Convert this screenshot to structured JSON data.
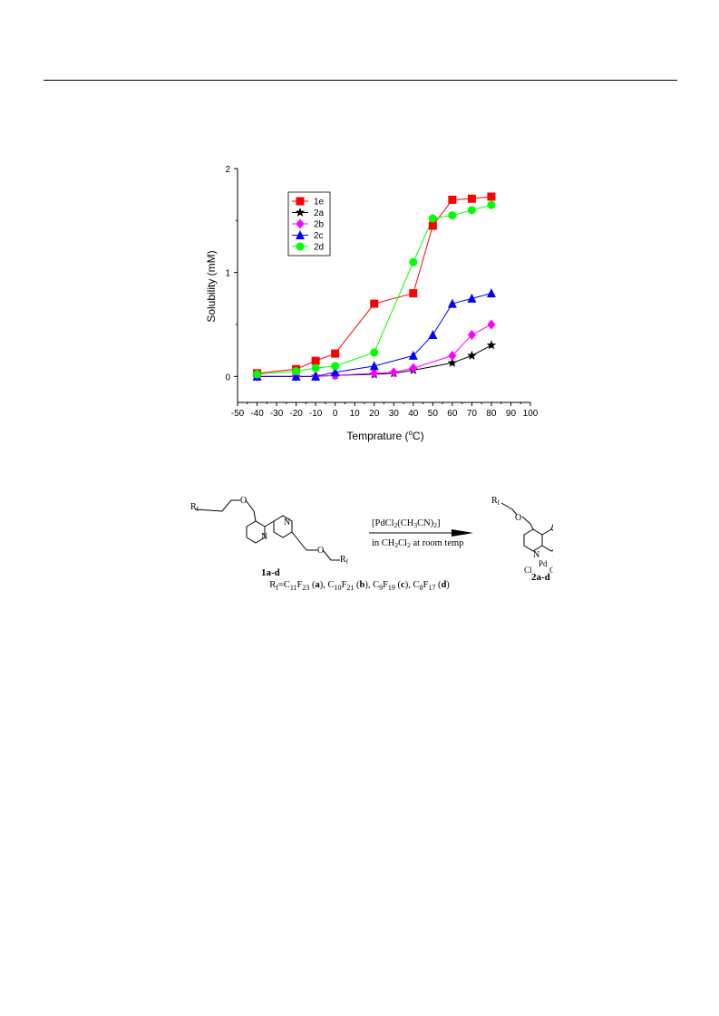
{
  "chart_data": {
    "type": "line",
    "xlabel": "Temprature (",
    "xlabel_sup": "o",
    "xlabel_tail": "C)",
    "ylabel": "Solubility (mM)",
    "xlim": [
      -50,
      100
    ],
    "ylim": [
      -0.25,
      2
    ],
    "xticks": [
      -50,
      -40,
      -30,
      -20,
      -10,
      0,
      10,
      20,
      30,
      40,
      50,
      60,
      70,
      80,
      90,
      100
    ],
    "yticks": [
      0,
      1,
      2
    ],
    "legend_position": "top-left",
    "series": [
      {
        "name": "1e",
        "color": "#ff0000",
        "marker": "square",
        "x": [
          -40,
          -20,
          -10,
          0,
          20,
          40,
          50,
          60,
          70,
          80
        ],
        "y": [
          0.03,
          0.07,
          0.15,
          0.22,
          0.7,
          0.8,
          1.45,
          1.7,
          1.71,
          1.73
        ]
      },
      {
        "name": "2a",
        "color": "#000000",
        "marker": "star",
        "x": [
          -40,
          -20,
          -10,
          0,
          20,
          30,
          40,
          60,
          70,
          80
        ],
        "y": [
          0.0,
          0.0,
          0.0,
          0.01,
          0.02,
          0.03,
          0.06,
          0.13,
          0.2,
          0.3
        ]
      },
      {
        "name": "2b",
        "color": "#ff00ff",
        "marker": "diamond",
        "x": [
          -40,
          -20,
          -10,
          0,
          20,
          30,
          40,
          60,
          70,
          80
        ],
        "y": [
          0.0,
          0.0,
          0.0,
          0.01,
          0.03,
          0.04,
          0.08,
          0.2,
          0.4,
          0.5
        ]
      },
      {
        "name": "2c",
        "color": "#0000ff",
        "marker": "triangle",
        "x": [
          -40,
          -20,
          -10,
          0,
          20,
          40,
          50,
          60,
          70,
          80
        ],
        "y": [
          0.0,
          0.0,
          0.0,
          0.04,
          0.1,
          0.2,
          0.4,
          0.7,
          0.75,
          0.8
        ]
      },
      {
        "name": "2d",
        "color": "#00ff00",
        "marker": "circle",
        "x": [
          -40,
          -20,
          -10,
          0,
          20,
          40,
          50,
          60,
          70,
          80
        ],
        "y": [
          0.02,
          0.05,
          0.08,
          0.1,
          0.23,
          1.1,
          1.52,
          1.55,
          1.6,
          1.65
        ]
      }
    ]
  },
  "scheme": {
    "reagent_prefix": "[PdCl",
    "reagent_sub1": "2",
    "reagent_mid": "(CH",
    "reagent_sub2": "3",
    "reagent_tail": "CN)",
    "reagent_sub3": "2",
    "reagent_close": "]",
    "condition_prefix": "in CH",
    "condition_sub1": "2",
    "condition_mid": "Cl",
    "condition_sub2": "2",
    "condition_tail": " at room temp",
    "reactant_label": "1a-d",
    "product_label": "2a-d",
    "rf": "R",
    "rf_sub": "f",
    "atom_o": "O",
    "atom_n": "N",
    "atom_pd": "Pd",
    "atom_cl": "Cl"
  },
  "caption": {
    "r": "R",
    "r_sub": "f",
    "eq": "=C",
    "a_formula_sub1": "11",
    "a_f": "F",
    "a_formula_sub2": "23",
    "a_label": "a",
    "b_c": ", C",
    "b_formula_sub1": "10",
    "b_f": "F",
    "b_formula_sub2": "21",
    "b_label": "b",
    "c_c": ", C",
    "c_formula_sub1": "9",
    "c_f": "F",
    "c_formula_sub2": "19",
    "c_label": "c",
    "d_c": ", C",
    "d_formula_sub1": "8",
    "d_f": "F",
    "d_formula_sub2": "17",
    "d_label": "d"
  }
}
